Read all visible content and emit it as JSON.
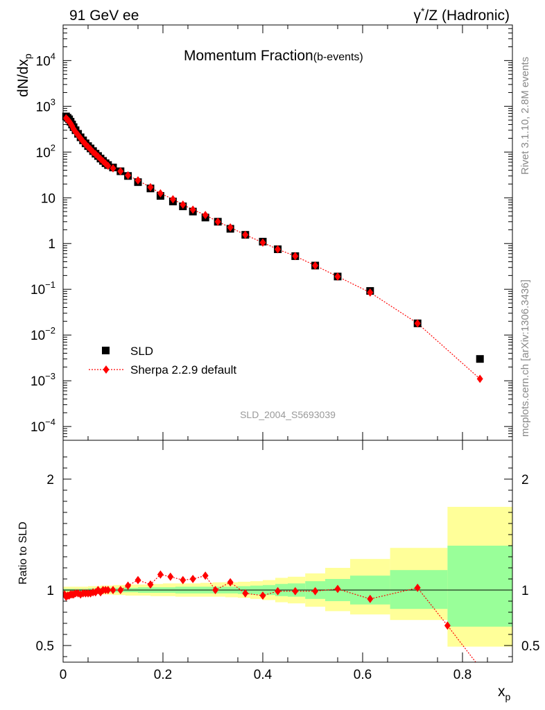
{
  "header": {
    "left": "91 GeV ee",
    "right_prefix": "γ",
    "right_sup": "*",
    "right_suffix": "/Z (Hadronic)"
  },
  "side_labels": {
    "top": "Rivet 3.1.10,  2.8M events",
    "bottom": "mcplots.cern.ch [arXiv:1306.3436]"
  },
  "chart_data": [
    {
      "type": "scatter",
      "title_main": "Momentum Fraction",
      "title_sub": "(b-events)",
      "ylabel_base": "dN/dx",
      "ylabel_sub": "p",
      "yscale": "log",
      "ylim": [
        5e-05,
        60000
      ],
      "xlim": [
        0,
        0.9
      ],
      "watermark": "SLD_2004_S5693039",
      "y_ticks": [
        {
          "base": "10",
          "exp": "4",
          "value": 10000
        },
        {
          "base": "10",
          "exp": "3",
          "value": 1000
        },
        {
          "base": "10",
          "exp": "2",
          "value": 100
        },
        {
          "base": "10",
          "exp": "",
          "value": 10
        },
        {
          "base": "1",
          "exp": "",
          "value": 1
        },
        {
          "base": "10",
          "exp": "−1",
          "value": 0.1
        },
        {
          "base": "10",
          "exp": "−2",
          "value": 0.01
        },
        {
          "base": "10",
          "exp": "−3",
          "value": 0.001
        },
        {
          "base": "10",
          "exp": "−4",
          "value": 0.0001
        }
      ],
      "legend": {
        "position": "bottom-left",
        "entries": [
          "SLD",
          "Sherpa 2.2.9 default"
        ]
      },
      "series": [
        {
          "name": "SLD",
          "marker": "square",
          "color": "#000000",
          "x": [
            0.006,
            0.009,
            0.012,
            0.015,
            0.018,
            0.021,
            0.025,
            0.03,
            0.035,
            0.04,
            0.045,
            0.05,
            0.055,
            0.06,
            0.065,
            0.07,
            0.075,
            0.08,
            0.085,
            0.09,
            0.1,
            0.115,
            0.13,
            0.15,
            0.175,
            0.195,
            0.22,
            0.24,
            0.26,
            0.285,
            0.31,
            0.335,
            0.365,
            0.4,
            0.43,
            0.465,
            0.505,
            0.55,
            0.615,
            0.71,
            0.835
          ],
          "y": [
            600,
            560,
            520,
            460,
            400,
            350,
            300,
            250,
            210,
            180,
            155,
            135,
            120,
            105,
            92,
            82,
            72,
            64,
            57,
            52,
            46,
            38,
            30,
            22,
            16,
            11,
            8.3,
            6.5,
            5,
            3.7,
            3,
            2.1,
            1.55,
            1.1,
            0.75,
            0.53,
            0.33,
            0.19,
            0.092,
            0.018,
            0.003
          ]
        },
        {
          "name": "Sherpa 2.2.9 default",
          "marker": "diamond",
          "line": "dotted",
          "color": "#ff0000",
          "x": [
            0.006,
            0.009,
            0.012,
            0.015,
            0.018,
            0.021,
            0.025,
            0.03,
            0.035,
            0.04,
            0.045,
            0.05,
            0.055,
            0.06,
            0.065,
            0.07,
            0.075,
            0.08,
            0.085,
            0.09,
            0.1,
            0.115,
            0.13,
            0.15,
            0.175,
            0.195,
            0.22,
            0.24,
            0.26,
            0.285,
            0.31,
            0.335,
            0.365,
            0.4,
            0.43,
            0.465,
            0.505,
            0.55,
            0.615,
            0.71,
            0.835
          ],
          "y": [
            550,
            510,
            470,
            420,
            370,
            320,
            275,
            235,
            200,
            170,
            148,
            130,
            115,
            100,
            90,
            80,
            71,
            63,
            56,
            50,
            44,
            38,
            31,
            24,
            17,
            12.5,
            9.3,
            7.1,
            5.5,
            4.2,
            3,
            2.25,
            1.55,
            1.05,
            0.75,
            0.53,
            0.33,
            0.19,
            0.085,
            0.018,
            0.0011
          ]
        }
      ]
    },
    {
      "type": "scatter",
      "ylabel": "Ratio to SLD",
      "xlabel_base": "x",
      "xlabel_sub": "p",
      "ylim": [
        0.35,
        2.35
      ],
      "xlim": [
        0,
        0.9
      ],
      "y_ticks": [
        0.5,
        1,
        2
      ],
      "y_tick_labels": [
        "0.5",
        "1",
        "2"
      ],
      "x_ticks": [
        0,
        0.2,
        0.4,
        0.6,
        0.8
      ],
      "x_tick_labels": [
        "0",
        "0.2",
        "0.4",
        "0.6",
        "0.8"
      ],
      "reference_line": 1,
      "uncertainty_bands": {
        "x_edges": [
          0,
          0.025,
          0.05,
          0.075,
          0.1,
          0.125,
          0.15,
          0.175,
          0.2,
          0.225,
          0.25,
          0.275,
          0.3,
          0.325,
          0.35,
          0.375,
          0.4,
          0.425,
          0.45,
          0.485,
          0.525,
          0.575,
          0.655,
          0.77,
          0.905
        ],
        "inner_color": "#99ff99",
        "outer_color": "#ffff99",
        "inner_lo": [
          0.99,
          0.99,
          0.985,
          0.98,
          0.98,
          0.98,
          0.975,
          0.975,
          0.975,
          0.97,
          0.97,
          0.97,
          0.97,
          0.97,
          0.965,
          0.96,
          0.955,
          0.945,
          0.94,
          0.92,
          0.9,
          0.87,
          0.83,
          0.67,
          0.67
        ],
        "inner_hi": [
          1.01,
          1.01,
          1.015,
          1.02,
          1.02,
          1.02,
          1.025,
          1.025,
          1.025,
          1.03,
          1.03,
          1.03,
          1.03,
          1.03,
          1.035,
          1.04,
          1.045,
          1.055,
          1.06,
          1.08,
          1.1,
          1.13,
          1.18,
          1.4,
          1.7
        ],
        "outer_lo": [
          0.97,
          0.97,
          0.965,
          0.96,
          0.955,
          0.95,
          0.95,
          0.945,
          0.945,
          0.94,
          0.94,
          0.94,
          0.94,
          0.935,
          0.93,
          0.92,
          0.91,
          0.89,
          0.88,
          0.85,
          0.81,
          0.78,
          0.73,
          0.49,
          0.49
        ],
        "outer_hi": [
          1.03,
          1.03,
          1.035,
          1.04,
          1.045,
          1.05,
          1.05,
          1.055,
          1.06,
          1.06,
          1.06,
          1.065,
          1.07,
          1.07,
          1.075,
          1.08,
          1.09,
          1.11,
          1.12,
          1.15,
          1.2,
          1.28,
          1.38,
          1.75,
          2.22
        ]
      },
      "series": [
        {
          "name": "Sherpa 2.2.9 default",
          "marker": "diamond",
          "line": "dotted",
          "color": "#ff0000",
          "x": [
            0.003,
            0.006,
            0.009,
            0.012,
            0.015,
            0.018,
            0.021,
            0.025,
            0.03,
            0.035,
            0.04,
            0.045,
            0.05,
            0.055,
            0.06,
            0.065,
            0.07,
            0.075,
            0.08,
            0.085,
            0.09,
            0.1,
            0.115,
            0.13,
            0.15,
            0.175,
            0.195,
            0.215,
            0.24,
            0.26,
            0.285,
            0.305,
            0.335,
            0.365,
            0.4,
            0.43,
            0.465,
            0.505,
            0.55,
            0.615,
            0.71,
            0.77,
            0.835
          ],
          "y": [
            0.96,
            0.94,
            0.95,
            0.95,
            0.96,
            0.96,
            0.96,
            0.97,
            0.97,
            0.96,
            0.97,
            0.97,
            0.97,
            0.97,
            0.98,
            0.98,
            1.0,
            0.98,
            1.0,
            1.0,
            1.0,
            1.0,
            1.0,
            1.04,
            1.09,
            1.05,
            1.14,
            1.12,
            1.09,
            1.1,
            1.13,
            1.0,
            1.07,
            0.97,
            0.95,
            0.99,
            0.99,
            0.99,
            1.01,
            0.92,
            1.02,
            0.68,
            0.3
          ]
        }
      ]
    }
  ]
}
